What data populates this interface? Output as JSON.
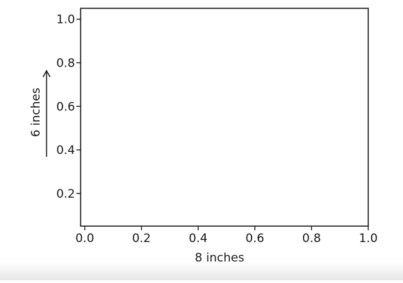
{
  "chart_data": {
    "type": "line",
    "title": "",
    "xlabel": "",
    "ylabel": "",
    "xlim": [
      0.0,
      1.0
    ],
    "ylim": [
      0.05,
      1.05
    ],
    "x_ticks": [
      0.0,
      0.2,
      0.4,
      0.6,
      0.8,
      1.0
    ],
    "x_tick_labels": [
      "0.0",
      "0.2",
      "0.4",
      "0.6",
      "0.8",
      "1.0"
    ],
    "y_ticks": [
      0.2,
      0.4,
      0.6,
      0.8,
      1.0
    ],
    "y_tick_labels": [
      "0.2",
      "0.4",
      "0.6",
      "0.8",
      "1.0"
    ],
    "grid": false,
    "series": []
  },
  "annotations": {
    "width_label": "8 inches",
    "height_label": "6 inches"
  }
}
